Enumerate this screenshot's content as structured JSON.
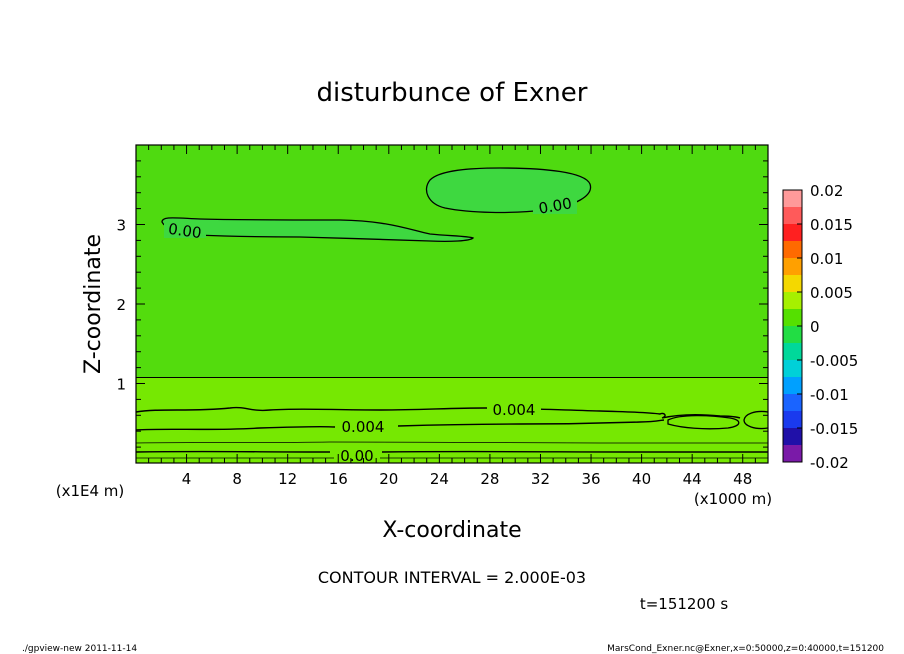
{
  "chart_data": {
    "type": "contour",
    "title": "disturbunce of Exner",
    "xlabel": "X-coordinate",
    "ylabel": "Z-coordinate",
    "x_unit_label": "(x1000 m)",
    "y_unit_label": "(x1E4 m)",
    "xlim": [
      0,
      50
    ],
    "ylim": [
      0,
      4
    ],
    "x_ticks": [
      4,
      8,
      12,
      16,
      20,
      24,
      28,
      32,
      36,
      40,
      44,
      48
    ],
    "y_ticks": [
      1,
      2,
      3
    ],
    "colorbar": {
      "ticks": [
        "0.02",
        "0.015",
        "0.01",
        "0.005",
        "0",
        "-0.005",
        "-0.01",
        "-0.015",
        "-0.02"
      ],
      "range": [
        -0.02,
        0.02
      ],
      "levels": [
        {
          "lo": 0.0175,
          "hi": 0.02,
          "color": "#ff9a9a"
        },
        {
          "lo": 0.015,
          "hi": 0.0175,
          "color": "#ff5a5a"
        },
        {
          "lo": 0.0125,
          "hi": 0.015,
          "color": "#ff2020"
        },
        {
          "lo": 0.01,
          "hi": 0.0125,
          "color": "#ff6a00"
        },
        {
          "lo": 0.0075,
          "hi": 0.01,
          "color": "#ffa000"
        },
        {
          "lo": 0.005,
          "hi": 0.0075,
          "color": "#f4d800"
        },
        {
          "lo": 0.0025,
          "hi": 0.005,
          "color": "#a6f000"
        },
        {
          "lo": 0.0,
          "hi": 0.0025,
          "color": "#55e000"
        },
        {
          "lo": -0.0025,
          "hi": 0.0,
          "color": "#22dd44"
        },
        {
          "lo": -0.005,
          "hi": -0.0025,
          "color": "#00d89a"
        },
        {
          "lo": -0.0075,
          "hi": -0.005,
          "color": "#00d0d8"
        },
        {
          "lo": -0.01,
          "hi": -0.0075,
          "color": "#00a0ff"
        },
        {
          "lo": -0.0125,
          "hi": -0.01,
          "color": "#1a64ff"
        },
        {
          "lo": -0.015,
          "hi": -0.0125,
          "color": "#1a3aee"
        },
        {
          "lo": -0.0175,
          "hi": -0.015,
          "color": "#2010a8"
        },
        {
          "lo": -0.02,
          "hi": -0.0175,
          "color": "#7a1aa8"
        }
      ]
    },
    "field_bands": [
      {
        "z_lo": 1.08,
        "z_hi": 4.0,
        "value_range": [
          0.0,
          0.002
        ],
        "color": "#4fda10"
      },
      {
        "z_lo": 0.0,
        "z_hi": 1.08,
        "value_range": [
          0.002,
          0.006
        ],
        "color": "#76e802"
      }
    ],
    "contour_labels": [
      "0.00",
      "0.00",
      "0.004",
      "0.004",
      "0.00"
    ],
    "contour_interval_text": "CONTOUR INTERVAL = 2.000E-03",
    "time_text": "t=151200 s"
  },
  "footer": {
    "left": "./gpview-new  2011-11-14",
    "right": "MarsCond_Exner.nc@Exner,x=0:50000,z=0:40000,t=151200"
  }
}
